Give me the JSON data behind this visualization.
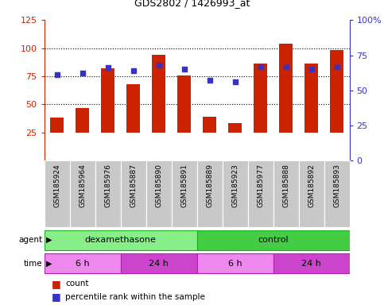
{
  "title": "GDS2802 / 1426993_at",
  "samples": [
    "GSM185924",
    "GSM185964",
    "GSM185976",
    "GSM185887",
    "GSM185890",
    "GSM185891",
    "GSM185889",
    "GSM185923",
    "GSM185977",
    "GSM185888",
    "GSM185892",
    "GSM185893"
  ],
  "count_values": [
    38,
    47,
    82,
    68,
    94,
    76,
    39,
    33,
    86,
    104,
    86,
    98
  ],
  "percentile_values": [
    61,
    62,
    66,
    64,
    68,
    65,
    57,
    56,
    67,
    67,
    65,
    67
  ],
  "bar_color": "#cc2200",
  "dot_color": "#3333cc",
  "ylim_left": [
    0,
    125
  ],
  "ylim_right": [
    0,
    100
  ],
  "yticks_left": [
    25,
    50,
    75,
    100,
    125
  ],
  "yticks_right": [
    0,
    25,
    50,
    75,
    100
  ],
  "ytick_labels_right": [
    "0",
    "25",
    "50",
    "75",
    "100%"
  ],
  "grid_values": [
    50,
    75,
    100
  ],
  "bar_color_hex": "#cc2200",
  "dot_color_hex": "#3333cc",
  "legend_count_label": "count",
  "legend_percentile_label": "percentile rank within the sample",
  "background_color": "#ffffff",
  "tick_area_color": "#c8c8c8",
  "bar_bottom": 25,
  "agent_dex_color": "#88ee88",
  "agent_ctrl_color": "#44cc44",
  "agent_border_color": "#22aa22",
  "time_light_color": "#ee88ee",
  "time_dark_color": "#cc44cc",
  "time_border_color": "#aa22aa"
}
